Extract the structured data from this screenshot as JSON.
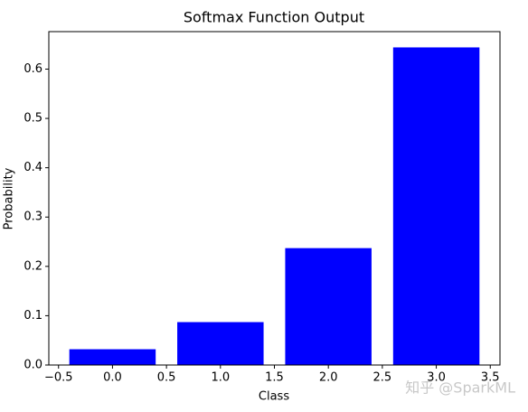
{
  "chart_data": {
    "type": "bar",
    "title": "Softmax Function Output",
    "x_label": "Class",
    "y_label": "Probability",
    "x": [
      0,
      1,
      2,
      3
    ],
    "values": [
      0.032,
      0.087,
      0.237,
      0.644
    ],
    "color": "#0000ff",
    "xlim": [
      -0.59,
      3.59
    ],
    "ylim": [
      0,
      0.676
    ],
    "xticks": [
      {
        "value": -0.5,
        "label": "−0.5"
      },
      {
        "value": 0,
        "label": "0.0"
      },
      0.5,
      {
        "value": 1,
        "label": "1.0"
      },
      1.5,
      {
        "value": 2,
        "label": "2.0"
      },
      2.5,
      {
        "value": 3,
        "label": "3.0"
      },
      3.5
    ],
    "yticks": [
      {
        "value": 0,
        "label": "0.0"
      },
      0.1,
      0.2,
      0.3,
      0.4,
      0.5,
      0.6
    ],
    "grid": false,
    "watermark": "知乎 @SparkML"
  }
}
